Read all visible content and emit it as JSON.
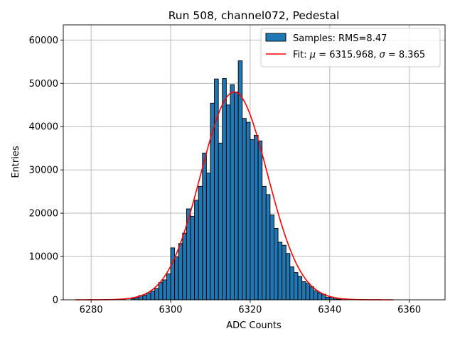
{
  "chart_data": {
    "type": "bar",
    "title": "Run 508, channel072, Pedestal",
    "xlabel": "ADC Counts",
    "ylabel": "Entries",
    "xlim": [
      6273,
      6369
    ],
    "ylim": [
      0,
      63500
    ],
    "xticks": [
      6280,
      6300,
      6320,
      6340,
      6360
    ],
    "yticks": [
      0,
      10000,
      20000,
      30000,
      40000,
      50000,
      60000
    ],
    "grid": true,
    "legend_position": "top-right",
    "bar_color": "#1f77b4",
    "fit_color": "#ff0000",
    "bin_width": 1,
    "bins": [
      6290,
      6291,
      6292,
      6293,
      6294,
      6295,
      6296,
      6297,
      6298,
      6299,
      6300,
      6301,
      6302,
      6303,
      6304,
      6305,
      6306,
      6307,
      6308,
      6309,
      6310,
      6311,
      6312,
      6313,
      6314,
      6315,
      6316,
      6317,
      6318,
      6319,
      6320,
      6321,
      6322,
      6323,
      6324,
      6325,
      6326,
      6327,
      6328,
      6329,
      6330,
      6331,
      6332,
      6333,
      6334,
      6335,
      6336,
      6337,
      6338,
      6339,
      6340,
      6341,
      6342
    ],
    "values": [
      300,
      500,
      1000,
      1100,
      1600,
      2000,
      2600,
      4000,
      4600,
      6000,
      12000,
      9900,
      13000,
      15400,
      21000,
      19300,
      23000,
      26200,
      33900,
      29300,
      45400,
      51000,
      36200,
      51100,
      45000,
      49700,
      48000,
      55200,
      41900,
      41000,
      37000,
      38000,
      36700,
      26200,
      24300,
      19600,
      16500,
      13300,
      12600,
      10700,
      7600,
      6300,
      5400,
      4200,
      3800,
      3000,
      2100,
      1600,
      1300,
      600,
      600,
      200,
      100
    ],
    "series": [
      {
        "name": "Samples: RMS=8.47",
        "kind": "histogram"
      },
      {
        "name_prefix": "Fit: ",
        "mu_label": "μ",
        "mu_text": " = 6315.968, ",
        "sigma_label": "σ",
        "sigma_text": " = 8.365",
        "kind": "gaussian",
        "mu": 6315.968,
        "sigma": 8.365,
        "amplitude": 48000,
        "x_range": [
          6276,
          6356
        ]
      }
    ]
  }
}
